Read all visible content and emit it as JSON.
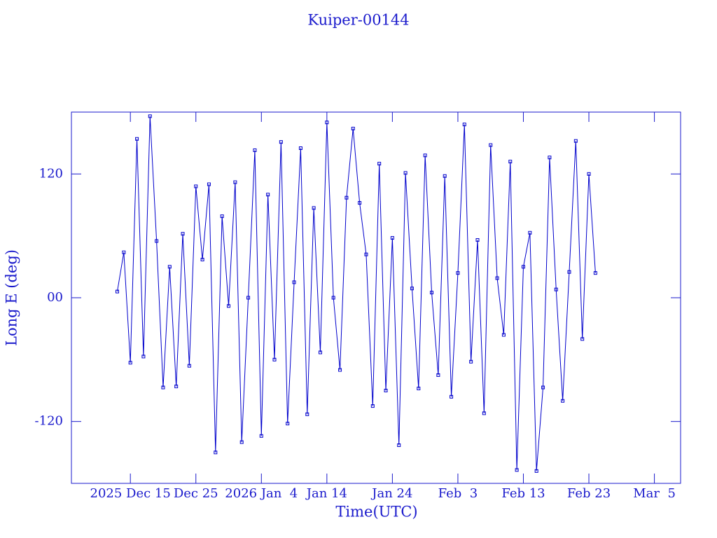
{
  "chart_data": {
    "type": "line",
    "title": "Kuiper-00144",
    "x_label": "Time(UTC)",
    "y_label": "Long E (deg)",
    "x": [
      "2025-12-13",
      "2025-12-14",
      "2025-12-15",
      "2025-12-16",
      "2025-12-17",
      "2025-12-18",
      "2025-12-19",
      "2025-12-20",
      "2025-12-21",
      "2025-12-22",
      "2025-12-23",
      "2025-12-24",
      "2025-12-25",
      "2025-12-26",
      "2025-12-27",
      "2025-12-28",
      "2025-12-29",
      "2025-12-30",
      "2025-12-31",
      "2026-01-01",
      "2026-01-02",
      "2026-01-03",
      "2026-01-04",
      "2026-01-05",
      "2026-01-06",
      "2026-01-07",
      "2026-01-08",
      "2026-01-09",
      "2026-01-10",
      "2026-01-11",
      "2026-01-12",
      "2026-01-13",
      "2026-01-14",
      "2026-01-15",
      "2026-01-16",
      "2026-01-17",
      "2026-01-18",
      "2026-01-19",
      "2026-01-20",
      "2026-01-21",
      "2026-01-22",
      "2026-01-23",
      "2026-01-24",
      "2026-01-25",
      "2026-01-26",
      "2026-01-27",
      "2026-01-28",
      "2026-01-29",
      "2026-01-30",
      "2026-01-31",
      "2026-02-01",
      "2026-02-02",
      "2026-02-03",
      "2026-02-04",
      "2026-02-05",
      "2026-02-06",
      "2026-02-07",
      "2026-02-08",
      "2026-02-09",
      "2026-02-10",
      "2026-02-11",
      "2026-02-12",
      "2026-02-13",
      "2026-02-14",
      "2026-02-15",
      "2026-02-16",
      "2026-02-17",
      "2026-02-18",
      "2026-02-19",
      "2026-02-20",
      "2026-02-21",
      "2026-02-22",
      "2026-02-23",
      "2026-02-24"
    ],
    "series": [
      {
        "color": "#0000cc",
        "values": [
          6,
          44,
          -63,
          154,
          -57,
          176,
          55,
          -87,
          30,
          -86,
          62,
          -66,
          108,
          37,
          110,
          -150,
          79,
          -8,
          112,
          -140,
          0,
          143,
          -134,
          100,
          -60,
          151,
          -122,
          15,
          145,
          -113,
          87,
          -53,
          170,
          0,
          -70,
          97,
          164,
          92,
          42,
          -105,
          130,
          -90,
          58,
          -143,
          121,
          9,
          -88,
          138,
          5,
          -75,
          118,
          -96,
          24,
          168,
          -62,
          56,
          -112,
          148,
          19,
          -36,
          132,
          -167,
          30,
          63,
          -168,
          -87,
          136,
          8,
          -100,
          25,
          152,
          -40,
          120,
          24
        ]
      }
    ],
    "xlim": [
      "2025-12-06",
      "2026-03-09"
    ],
    "xticks": [
      {
        "value": "2025-12-15",
        "label": "2025 Dec 15"
      },
      {
        "value": "2025-12-25",
        "label": "Dec 25"
      },
      {
        "value": "2026-01-04",
        "label": "2026 Jan  4"
      },
      {
        "value": "2026-01-14",
        "label": "Jan 14"
      },
      {
        "value": "2026-01-24",
        "label": "Jan 24"
      },
      {
        "value": "2026-02-03",
        "label": "Feb  3"
      },
      {
        "value": "2026-02-13",
        "label": "Feb 13"
      },
      {
        "value": "2026-02-23",
        "label": "Feb 23"
      },
      {
        "value": "2026-03-05",
        "label": "Mar  5"
      }
    ],
    "ylim": [
      -180,
      180
    ],
    "yticks": [
      -120,
      {
        "value": 0,
        "label": "00"
      },
      120
    ]
  }
}
